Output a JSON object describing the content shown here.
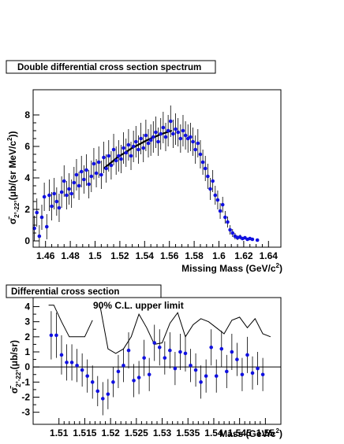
{
  "chart_data": [
    {
      "type": "scatter",
      "title": "Double differential cross section spectrum",
      "xlabel": "Missing Mass (GeV/c²)",
      "ylabel": "σ̄_{2°-22°}(μb/(sr MeV/c²))",
      "ylabel_main": "σ̄",
      "ylabel_sub": "2°-22°",
      "ylabel_unit": "(μb/(sr MeV/c",
      "ylabel_sup": "2",
      "ylabel_end": "))",
      "xlim": [
        1.45,
        1.65
      ],
      "ylim": [
        -0.4,
        9.6
      ],
      "x_ticks": [
        "1.46",
        "1.48",
        "1.5",
        "1.52",
        "1.54",
        "1.56",
        "1.58",
        "1.6",
        "1.62",
        "1.64"
      ],
      "y_ticks": [
        "0",
        "2",
        "4",
        "6",
        "8"
      ],
      "grid": false,
      "marker_color": "#1010e0",
      "fit_line": {
        "x": [
          1.507,
          1.518,
          1.53,
          1.542,
          1.554,
          1.562
        ],
        "y": [
          4.6,
          5.3,
          5.9,
          6.4,
          6.8,
          7.0
        ]
      },
      "series": [
        {
          "x": [
            1.451,
            1.453,
            1.455,
            1.457,
            1.459,
            1.461,
            1.463,
            1.465,
            1.467,
            1.469,
            1.471,
            1.473,
            1.475,
            1.477,
            1.479,
            1.481,
            1.483,
            1.485,
            1.487,
            1.489,
            1.491,
            1.493,
            1.495,
            1.497,
            1.499,
            1.501,
            1.503,
            1.505,
            1.507,
            1.509,
            1.511,
            1.513,
            1.515,
            1.517,
            1.519,
            1.521,
            1.523,
            1.525,
            1.527,
            1.529,
            1.531,
            1.533,
            1.535,
            1.537,
            1.539,
            1.541,
            1.543,
            1.545,
            1.547,
            1.549,
            1.551,
            1.553,
            1.555,
            1.557,
            1.559,
            1.561,
            1.563,
            1.565,
            1.567,
            1.569,
            1.571,
            1.573,
            1.575,
            1.577,
            1.579,
            1.581,
            1.583,
            1.585,
            1.587,
            1.589,
            1.591,
            1.593,
            1.595,
            1.597,
            1.599,
            1.601,
            1.603,
            1.605,
            1.607,
            1.609,
            1.611,
            1.613,
            1.615,
            1.617,
            1.619,
            1.621,
            1.623,
            1.625,
            1.627,
            1.631
          ],
          "y": [
            0.8,
            1.8,
            0.3,
            1.5,
            2.8,
            0.9,
            2.9,
            2.2,
            3.0,
            2.5,
            2.1,
            3.1,
            3.8,
            2.9,
            3.3,
            3.0,
            3.7,
            4.2,
            3.5,
            4.4,
            3.9,
            4.5,
            3.6,
            4.1,
            4.9,
            4.3,
            5.0,
            4.2,
            5.3,
            4.6,
            5.4,
            4.8,
            5.8,
            5.1,
            5.4,
            5.2,
            5.9,
            5.6,
            6.1,
            5.4,
            6.0,
            6.3,
            5.8,
            6.5,
            5.9,
            6.7,
            6.2,
            6.4,
            6.6,
            6.9,
            6.3,
            6.8,
            7.2,
            6.6,
            7.0,
            7.6,
            6.8,
            7.1,
            6.9,
            6.5,
            7.0,
            6.7,
            6.5,
            6.6,
            6.3,
            5.8,
            6.2,
            5.5,
            5.0,
            4.6,
            4.1,
            3.3,
            3.8,
            2.9,
            2.6,
            1.9,
            2.3,
            1.5,
            1.2,
            0.7,
            0.5,
            0.3,
            0.2,
            0.25,
            0.15,
            0.2,
            0.1,
            0.15,
            0.1,
            0.05
          ],
          "err": [
            0.8,
            0.9,
            0.7,
            0.8,
            0.9,
            0.8,
            1.0,
            0.9,
            1.0,
            0.9,
            0.9,
            1.0,
            1.0,
            0.9,
            1.0,
            0.9,
            1.0,
            1.0,
            0.9,
            1.0,
            0.9,
            1.0,
            0.9,
            1.0,
            1.0,
            0.9,
            1.0,
            0.9,
            1.0,
            0.9,
            1.0,
            0.9,
            1.0,
            0.9,
            1.0,
            0.9,
            1.0,
            0.9,
            1.0,
            0.9,
            1.0,
            1.0,
            0.9,
            1.0,
            0.9,
            1.0,
            0.9,
            1.0,
            1.0,
            1.0,
            0.9,
            1.0,
            1.0,
            0.9,
            1.0,
            1.0,
            0.9,
            1.0,
            0.9,
            0.9,
            1.0,
            0.9,
            0.9,
            0.9,
            0.9,
            0.9,
            0.9,
            0.9,
            0.8,
            0.8,
            0.8,
            0.7,
            0.7,
            0.6,
            0.6,
            0.5,
            0.5,
            0.4,
            0.35,
            0.3,
            0.25,
            0.2,
            0.15,
            0.15,
            0.1,
            0.1,
            0.08,
            0.08,
            0.06,
            0.05
          ]
        }
      ]
    },
    {
      "type": "scatter",
      "title": "Differential cross section",
      "annotation": "90% C.L. upper limit",
      "xlabel": "Mass (GeV/c²)",
      "ylabel": "σ̄_{2°-22°}(μb/sr)",
      "ylabel_main": "σ̄",
      "ylabel_sub": "2°-22°",
      "ylabel_unit": "(μb/sr)",
      "xlim": [
        1.505,
        1.553
      ],
      "ylim": [
        -3.8,
        4.6
      ],
      "x_ticks": [
        "1.51",
        "1.515",
        "1.52",
        "1.525",
        "1.53",
        "1.535",
        "1.54",
        "1.545",
        "1.55"
      ],
      "y_ticks": [
        "-3",
        "-2",
        "-1",
        "0",
        "1",
        "2",
        "3",
        "4"
      ],
      "grid": false,
      "zero_line": true,
      "marker_color": "#1010e0",
      "upper_limit": {
        "x": [
          1.508,
          1.509,
          1.5105,
          1.512,
          1.5135,
          1.515,
          1.5165,
          1.518,
          1.5195,
          1.521,
          1.5225,
          1.524,
          1.5255,
          1.527,
          1.5285,
          1.53,
          1.5315,
          1.533,
          1.5345,
          1.536,
          1.5375,
          1.539,
          1.5405,
          1.542,
          1.5435,
          1.545,
          1.5465,
          1.548,
          1.5495,
          1.551
        ],
        "y": [
          4.1,
          4.1,
          3.0,
          2.0,
          2.0,
          2.0,
          3.1,
          4.0,
          1.2,
          0.9,
          1.2,
          2.0,
          3.5,
          2.6,
          1.5,
          1.6,
          2.9,
          3.6,
          2.0,
          2.8,
          3.2,
          3.0,
          2.6,
          2.2,
          3.1,
          3.3,
          2.6,
          3.2,
          2.2,
          2.0
        ]
      },
      "upper_limit_gap_after_index": 6,
      "upper_limit_break": {
        "x": [
          1.518,
          1.5195
        ],
        "y": [
          4.0,
          2.5
        ]
      },
      "series": [
        {
          "x": [
            1.5085,
            1.5095,
            1.5105,
            1.5115,
            1.5125,
            1.5135,
            1.5145,
            1.5155,
            1.5165,
            1.5175,
            1.5185,
            1.5195,
            1.5205,
            1.5215,
            1.5225,
            1.5235,
            1.5245,
            1.5255,
            1.5265,
            1.5275,
            1.5285,
            1.5295,
            1.5305,
            1.5315,
            1.5325,
            1.5335,
            1.5345,
            1.5355,
            1.5365,
            1.5375,
            1.5385,
            1.5395,
            1.5405,
            1.5415,
            1.5425,
            1.5435,
            1.5445,
            1.5455,
            1.5465,
            1.5475,
            1.5485,
            1.5495
          ],
          "y": [
            2.1,
            2.1,
            0.8,
            0.3,
            0.3,
            0.1,
            -0.2,
            -0.6,
            -1.0,
            -1.6,
            -2.1,
            -1.8,
            -1.0,
            -0.3,
            0.1,
            1.1,
            -0.9,
            -0.7,
            0.6,
            -0.5,
            1.6,
            1.3,
            0.6,
            1.1,
            -0.1,
            1.0,
            0.9,
            0.1,
            -0.2,
            -1.0,
            -0.6,
            1.3,
            -0.6,
            1.2,
            -0.3,
            1.0,
            0.5,
            -0.5,
            0.8,
            -0.4,
            -0.1,
            -0.5
          ],
          "err": [
            1.6,
            1.5,
            1.3,
            1.2,
            1.2,
            1.1,
            1.1,
            1.1,
            1.1,
            1.0,
            1.1,
            1.0,
            1.0,
            1.1,
            1.1,
            1.2,
            1.1,
            1.1,
            1.2,
            1.1,
            1.2,
            1.2,
            1.1,
            1.2,
            1.1,
            1.2,
            1.2,
            1.1,
            1.1,
            1.1,
            1.1,
            1.2,
            1.1,
            1.2,
            1.1,
            1.2,
            1.1,
            1.1,
            1.2,
            1.1,
            1.1,
            1.1
          ]
        }
      ]
    }
  ]
}
